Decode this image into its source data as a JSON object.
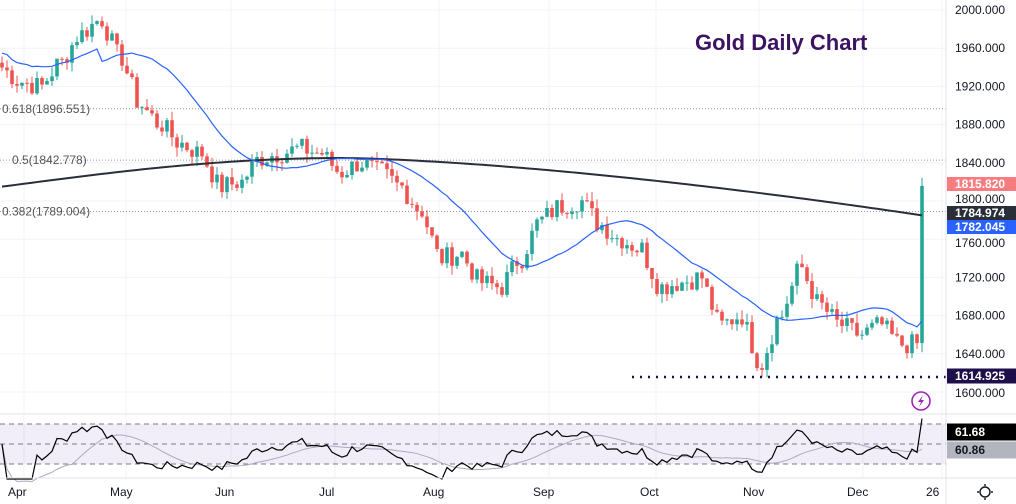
{
  "chart_data": {
    "type": "candlestick",
    "title": "Gold Daily Chart",
    "ylim": [
      1585,
      2010
    ],
    "y_ticks": [
      "2000.000",
      "1960.000",
      "1920.000",
      "1880.000",
      "1840.000",
      "1800.000",
      "1760.000",
      "1720.000",
      "1680.000",
      "1640.000",
      "1600.000"
    ],
    "y_tick_values": [
      2000,
      1960,
      1920,
      1880,
      1840,
      1800,
      1760,
      1720,
      1680,
      1640,
      1600
    ],
    "x_ticks": [
      "Apr",
      "May",
      "Jun",
      "Jul",
      "Aug",
      "Sep",
      "Oct",
      "Nov",
      "Dec",
      "26"
    ],
    "close_path": [
      1940,
      1925,
      1920,
      1945,
      1975,
      1990,
      1950,
      1900,
      1880,
      1860,
      1850,
      1815,
      1820,
      1845,
      1850,
      1855,
      1850,
      1830,
      1840,
      1830,
      1815,
      1790,
      1740,
      1745,
      1715,
      1710,
      1740,
      1780,
      1795,
      1800,
      1775,
      1760,
      1750,
      1710,
      1715,
      1720,
      1670,
      1680,
      1630,
      1680,
      1730,
      1690,
      1670,
      1660,
      1670,
      1650,
      1650,
      1680,
      1770,
      1780,
      1760,
      1750,
      1770,
      1790,
      1780,
      1785,
      1800,
      1815
    ],
    "fib_levels": [
      {
        "label": "0.618(1896.551)",
        "value": 1896.551
      },
      {
        "label": "0.5(1842.778)",
        "value": 1842.778
      },
      {
        "label": "0.382(1789.004)",
        "value": 1789.004
      }
    ],
    "support_level": {
      "label": "1614.925",
      "value": 1614.925
    },
    "price_tags": {
      "last": "1815.820",
      "ma200": "1784.974",
      "ma20": "1782.045"
    },
    "rsi": {
      "value": "61.68",
      "signal": "60.86",
      "levels": [
        70,
        50,
        30
      ]
    },
    "colors": {
      "up": "#26a69a",
      "down": "#ef5350",
      "ma_long": "#2a2e39",
      "ma_short": "#2962ff",
      "title": "#3c1361",
      "support": "#1e0e4a"
    }
  }
}
